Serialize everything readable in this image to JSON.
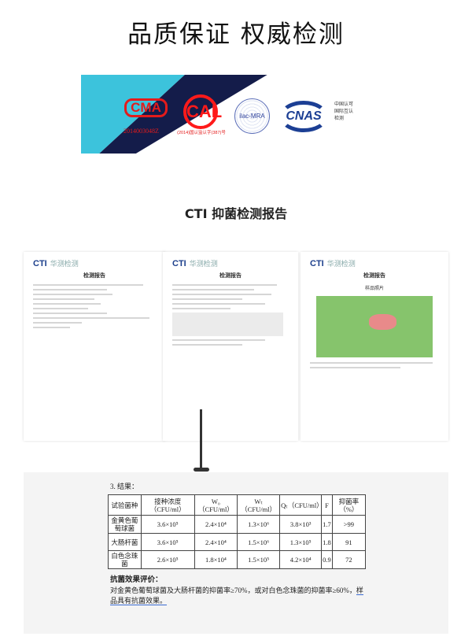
{
  "title": "品质保证 权威检测",
  "logos": {
    "cma": "CMA",
    "cma_no": "2014003048Z",
    "cal": "CAL",
    "cal_no": "(2014)国认监认字(387)号",
    "ilac": "ilac-MRA",
    "cnas": "CNAS",
    "cnas_text": "中国认可 国际互认 检测"
  },
  "subtitle": "CTI 抑菌检测报告",
  "pages": [
    {
      "brand": "CTI",
      "brand_cn": "华测检测",
      "heading": "检测报告"
    },
    {
      "brand": "CTI",
      "brand_cn": "华测检测",
      "heading": "检测报告"
    },
    {
      "brand": "CTI",
      "brand_cn": "华测检测",
      "heading": "检测报告",
      "photo_label": "样品照片"
    }
  ],
  "results": {
    "label": "3. 结果：",
    "headers": [
      "试验菌种",
      "接种浓度（CFU/ml）",
      "W₀（CFU/ml）",
      "Wₜ（CFU/ml）",
      "Qₜ（CFU/ml）",
      "F",
      "抑菌率（%）"
    ],
    "rows": [
      [
        "金黄色葡萄球菌",
        "3.6×10⁵",
        "2.4×10⁴",
        "1.3×10⁶",
        "3.8×10³",
        "1.7",
        ">99"
      ],
      [
        "大肠杆菌",
        "3.6×10⁵",
        "2.4×10⁴",
        "1.5×10⁶",
        "1.3×10⁵",
        "1.8",
        "91"
      ],
      [
        "白色念珠菌",
        "2.6×10⁵",
        "1.8×10⁴",
        "1.5×10⁵",
        "4.2×10⁴",
        "0.9",
        "72"
      ]
    ]
  },
  "evaluation": {
    "heading": "抗菌效果评价：",
    "text": "对金黄色葡萄球菌及大肠杆菌的抑菌率≥70%，或对白色念珠菌的抑菌率≥60%，",
    "highlight": "样品具有抗菌效果。"
  }
}
